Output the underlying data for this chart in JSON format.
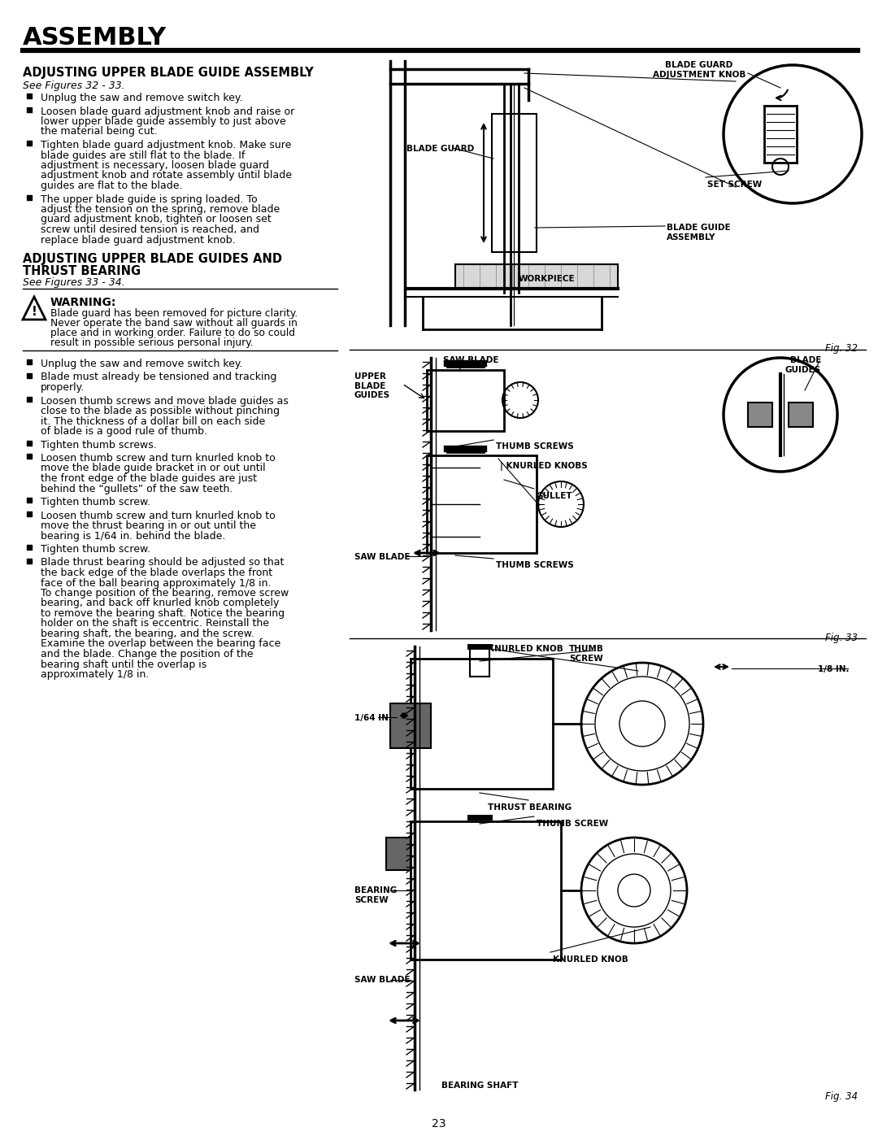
{
  "page_title": "ASSEMBLY",
  "section1_title": "ADJUSTING UPPER BLADE GUIDE ASSEMBLY",
  "section1_subtitle": "See Figures 32 - 33.",
  "section1_bullets": [
    "Unplug the saw and remove switch key.",
    "Loosen blade guard adjustment knob and raise or lower upper blade guide assembly to just above the material being cut.",
    "Tighten blade guard adjustment knob. Make sure blade guides are still flat to the blade. If adjustment is necessary, loosen blade guard adjustment knob and rotate assembly until blade guides are flat to the blade.",
    "The upper blade guide is spring loaded. To adjust the tension on the spring, remove blade guard adjustment knob, tighten or loosen set screw until desired tension is reached, and replace blade guard adjustment knob."
  ],
  "section2_title_line1": "ADJUSTING UPPER BLADE GUIDES AND",
  "section2_title_line2": "THRUST BEARING",
  "section2_subtitle": "See Figures 33 - 34.",
  "warning_title": "WARNING:",
  "warning_text_lines": [
    "Blade guard has been removed for picture clarity.",
    "Never operate the band saw without all guards in",
    "place and in working order. Failure to do so could",
    "result in possible serious personal injury."
  ],
  "section2_bullets": [
    "Unplug the saw and remove switch key.",
    "Blade must already be tensioned and tracking properly.",
    "Loosen thumb screws and move blade guides as close to the blade as possible without pinching it. The thickness of a dollar bill on each side of blade is a good rule of thumb.",
    "Tighten thumb screws.",
    "Loosen thumb screw and turn knurled knob to move the blade guide bracket in or out until the front edge of the blade guides are just behind the “gullets” of the saw teeth.",
    "Tighten thumb screw.",
    "Loosen thumb screw and turn knurled knob to move the thrust bearing in or out until the bearing is 1/64 in. behind the blade.",
    "Tighten thumb screw.",
    "Blade thrust bearing should be adjusted so that the back edge of the blade overlaps the front face of the ball bearing approximately 1/8 in. To change position of the bearing, remove screw bearing, and back off knurled knob completely to remove the bearing shaft. Notice the bearing holder on the shaft is eccentric. Reinstall the bearing shaft, the bearing, and the screw. Examine the overlap between the bearing face and the blade. Change the position of the bearing shaft until the overlap is approximately 1/8 in."
  ],
  "page_number": "23",
  "bg_color": "#ffffff",
  "text_color": "#000000"
}
